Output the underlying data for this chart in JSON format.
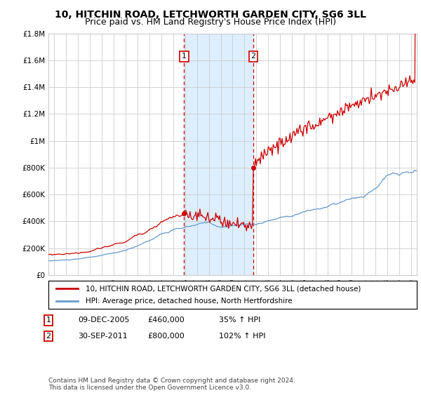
{
  "title": "10, HITCHIN ROAD, LETCHWORTH GARDEN CITY, SG6 3LL",
  "subtitle": "Price paid vs. HM Land Registry's House Price Index (HPI)",
  "footer": "Contains HM Land Registry data © Crown copyright and database right 2024.\nThis data is licensed under the Open Government Licence v3.0.",
  "legend_line1": "10, HITCHIN ROAD, LETCHWORTH GARDEN CITY, SG6 3LL (detached house)",
  "legend_line2": "HPI: Average price, detached house, North Hertfordshire",
  "sale1_label": "1",
  "sale1_date": "09-DEC-2005",
  "sale1_price": "£460,000",
  "sale1_hpi": "35% ↑ HPI",
  "sale1_year": 2005.917,
  "sale1_value": 460000,
  "sale2_label": "2",
  "sale2_date": "30-SEP-2011",
  "sale2_price": "£800,000",
  "sale2_hpi": "102% ↑ HPI",
  "sale2_year": 2011.75,
  "sale2_value": 800000,
  "ylim": [
    0,
    1800000
  ],
  "xlim_start": 1994.5,
  "xlim_end": 2025.5,
  "yticks": [
    0,
    200000,
    400000,
    600000,
    800000,
    1000000,
    1200000,
    1400000,
    1600000,
    1800000
  ],
  "ytick_labels": [
    "£0",
    "£200K",
    "£400K",
    "£600K",
    "£800K",
    "£1M",
    "£1.2M",
    "£1.4M",
    "£1.6M",
    "£1.8M"
  ],
  "xticks": [
    1995,
    1996,
    1997,
    1998,
    1999,
    2000,
    2001,
    2002,
    2003,
    2004,
    2005,
    2006,
    2007,
    2008,
    2009,
    2010,
    2011,
    2012,
    2013,
    2014,
    2015,
    2016,
    2017,
    2018,
    2019,
    2020,
    2021,
    2022,
    2023,
    2024,
    2025
  ],
  "red_color": "#cc0000",
  "blue_color": "#6699cc",
  "shade_color": "#ddeeff",
  "background_color": "#ffffff",
  "grid_color": "#cccccc",
  "title_fontsize": 10,
  "subtitle_fontsize": 9,
  "axis_fontsize": 7.5,
  "legend_fontsize": 7.5,
  "table_fontsize": 8,
  "footer_fontsize": 6.5
}
